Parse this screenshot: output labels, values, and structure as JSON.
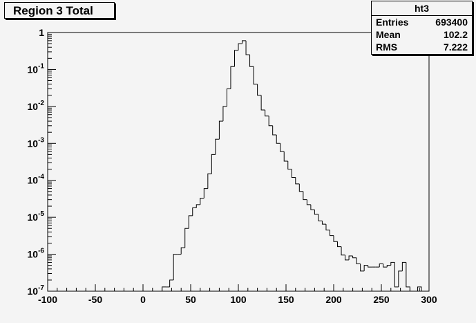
{
  "chart_data": {
    "type": "histogram",
    "title": "Region 3 Total",
    "x_range": [
      -100,
      300
    ],
    "y_scale": "log",
    "y_range": [
      1e-07,
      1
    ],
    "x_ticks": [
      "-100",
      "-50",
      "0",
      "50",
      "100",
      "150",
      "200",
      "250",
      "300"
    ],
    "y_ticks": [
      {
        "base": "1",
        "exp": ""
      },
      {
        "base": "10",
        "exp": "-1"
      },
      {
        "base": "10",
        "exp": "-2"
      },
      {
        "base": "10",
        "exp": "-3"
      },
      {
        "base": "10",
        "exp": "-4"
      },
      {
        "base": "10",
        "exp": "-5"
      },
      {
        "base": "10",
        "exp": "-6"
      },
      {
        "base": "10",
        "exp": "-7"
      }
    ],
    "bin_width": 4,
    "bins": [
      {
        "x0": 20,
        "y": 1.3e-07
      },
      {
        "x0": 24,
        "y": 1.3e-07
      },
      {
        "x0": 28,
        "y": 2e-07
      },
      {
        "x0": 32,
        "y": 1e-06
      },
      {
        "x0": 36,
        "y": 1e-06
      },
      {
        "x0": 40,
        "y": 1.5e-06
      },
      {
        "x0": 44,
        "y": 5e-06
      },
      {
        "x0": 48,
        "y": 1.1e-05
      },
      {
        "x0": 52,
        "y": 1.8e-05
      },
      {
        "x0": 56,
        "y": 2.2e-05
      },
      {
        "x0": 60,
        "y": 3.3e-05
      },
      {
        "x0": 64,
        "y": 6e-05
      },
      {
        "x0": 68,
        "y": 0.00015
      },
      {
        "x0": 72,
        "y": 0.0005
      },
      {
        "x0": 76,
        "y": 0.0013
      },
      {
        "x0": 80,
        "y": 0.004
      },
      {
        "x0": 84,
        "y": 0.01
      },
      {
        "x0": 88,
        "y": 0.03
      },
      {
        "x0": 92,
        "y": 0.12
      },
      {
        "x0": 96,
        "y": 0.33
      },
      {
        "x0": 100,
        "y": 0.5
      },
      {
        "x0": 104,
        "y": 0.6
      },
      {
        "x0": 108,
        "y": 0.25
      },
      {
        "x0": 112,
        "y": 0.12
      },
      {
        "x0": 116,
        "y": 0.04
      },
      {
        "x0": 120,
        "y": 0.02
      },
      {
        "x0": 124,
        "y": 0.008
      },
      {
        "x0": 128,
        "y": 0.0055
      },
      {
        "x0": 132,
        "y": 0.003
      },
      {
        "x0": 136,
        "y": 0.0017
      },
      {
        "x0": 140,
        "y": 0.001
      },
      {
        "x0": 144,
        "y": 0.0006
      },
      {
        "x0": 148,
        "y": 0.00033
      },
      {
        "x0": 152,
        "y": 0.0002
      },
      {
        "x0": 156,
        "y": 0.00012
      },
      {
        "x0": 160,
        "y": 8e-05
      },
      {
        "x0": 164,
        "y": 5e-05
      },
      {
        "x0": 168,
        "y": 3e-05
      },
      {
        "x0": 172,
        "y": 2.2e-05
      },
      {
        "x0": 176,
        "y": 1.6e-05
      },
      {
        "x0": 180,
        "y": 1.2e-05
      },
      {
        "x0": 184,
        "y": 8e-06
      },
      {
        "x0": 188,
        "y": 6.5e-06
      },
      {
        "x0": 192,
        "y": 4.5e-06
      },
      {
        "x0": 196,
        "y": 3.2e-06
      },
      {
        "x0": 200,
        "y": 2.2e-06
      },
      {
        "x0": 204,
        "y": 1.6e-06
      },
      {
        "x0": 208,
        "y": 9.5e-07
      },
      {
        "x0": 212,
        "y": 7e-07
      },
      {
        "x0": 216,
        "y": 9e-07
      },
      {
        "x0": 220,
        "y": 8e-07
      },
      {
        "x0": 224,
        "y": 5.5e-07
      },
      {
        "x0": 228,
        "y": 3.5e-07
      },
      {
        "x0": 232,
        "y": 5e-07
      },
      {
        "x0": 236,
        "y": 4.5e-07
      },
      {
        "x0": 240,
        "y": 4.5e-07
      },
      {
        "x0": 244,
        "y": 4.5e-07
      },
      {
        "x0": 248,
        "y": 5.5e-07
      },
      {
        "x0": 252,
        "y": 4.5e-07
      },
      {
        "x0": 256,
        "y": 5e-07
      },
      {
        "x0": 260,
        "y": 6e-07
      },
      {
        "x0": 264,
        "y": 1.3e-07
      },
      {
        "x0": 268,
        "y": 3.5e-07
      },
      {
        "x0": 272,
        "y": 6e-07
      },
      {
        "x0": 276,
        "y": 1.3e-07
      },
      {
        "x0": 288,
        "y": 1.3e-07
      }
    ]
  },
  "stats": {
    "name": "ht3",
    "rows": [
      {
        "label": "Entries",
        "value": "693400"
      },
      {
        "label": "Mean",
        "value": "102.2"
      },
      {
        "label": "RMS",
        "value": "7.222"
      }
    ]
  }
}
